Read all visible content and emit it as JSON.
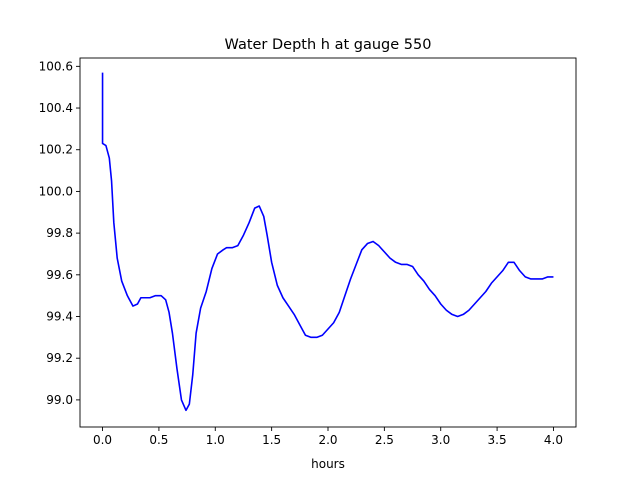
{
  "chart_data": {
    "type": "line",
    "title": "Water Depth h at gauge 550",
    "xlabel": "hours",
    "ylabel": "",
    "xlim": [
      -0.2,
      4.2
    ],
    "ylim": [
      98.87,
      100.64
    ],
    "xticks": [
      0.0,
      0.5,
      1.0,
      1.5,
      2.0,
      2.5,
      3.0,
      3.5,
      4.0
    ],
    "xtick_labels": [
      "0.0",
      "0.5",
      "1.0",
      "1.5",
      "2.0",
      "2.5",
      "3.0",
      "3.5",
      "4.0"
    ],
    "yticks": [
      99.0,
      99.2,
      99.4,
      99.6,
      99.8,
      100.0,
      100.2,
      100.4,
      100.6
    ],
    "ytick_labels": [
      "99.0",
      "99.2",
      "99.4",
      "99.6",
      "99.8",
      "100.0",
      "100.2",
      "100.4",
      "100.6"
    ],
    "grid": false,
    "legend": "none",
    "line_color": "#0000ff",
    "series": [
      {
        "x": [
          0.0,
          0.0,
          0.03,
          0.06,
          0.08,
          0.1,
          0.13,
          0.17,
          0.22,
          0.27,
          0.31,
          0.34,
          0.37,
          0.42,
          0.47,
          0.52,
          0.56,
          0.59,
          0.62,
          0.66,
          0.7,
          0.74,
          0.77,
          0.8,
          0.83,
          0.87,
          0.92,
          0.97,
          1.02,
          1.07,
          1.1,
          1.15,
          1.2,
          1.25,
          1.3,
          1.35,
          1.39,
          1.43,
          1.46,
          1.5,
          1.55,
          1.6,
          1.65,
          1.7,
          1.75,
          1.8,
          1.85,
          1.9,
          1.95,
          2.0,
          2.05,
          2.1,
          2.15,
          2.2,
          2.25,
          2.3,
          2.35,
          2.4,
          2.45,
          2.5,
          2.55,
          2.6,
          2.65,
          2.7,
          2.75,
          2.8,
          2.85,
          2.9,
          2.95,
          3.0,
          3.05,
          3.1,
          3.15,
          3.2,
          3.25,
          3.3,
          3.35,
          3.4,
          3.45,
          3.5,
          3.55,
          3.6,
          3.65,
          3.7,
          3.75,
          3.8,
          3.85,
          3.9,
          3.95,
          4.0
        ],
        "y": [
          100.57,
          100.23,
          100.22,
          100.16,
          100.05,
          99.85,
          99.68,
          99.57,
          99.5,
          99.45,
          99.46,
          99.49,
          99.49,
          99.49,
          99.5,
          99.5,
          99.48,
          99.42,
          99.32,
          99.15,
          99.0,
          98.95,
          98.98,
          99.12,
          99.32,
          99.44,
          99.52,
          99.63,
          99.7,
          99.72,
          99.73,
          99.73,
          99.74,
          99.79,
          99.85,
          99.92,
          99.93,
          99.88,
          99.79,
          99.66,
          99.55,
          99.49,
          99.45,
          99.41,
          99.36,
          99.31,
          99.3,
          99.3,
          99.31,
          99.34,
          99.37,
          99.42,
          99.5,
          99.58,
          99.65,
          99.72,
          99.75,
          99.76,
          99.74,
          99.71,
          99.68,
          99.66,
          99.65,
          99.65,
          99.64,
          99.6,
          99.57,
          99.53,
          99.5,
          99.46,
          99.43,
          99.41,
          99.4,
          99.41,
          99.43,
          99.46,
          99.49,
          99.52,
          99.56,
          99.59,
          99.62,
          99.66,
          99.66,
          99.62,
          99.59,
          99.58,
          99.58,
          99.58,
          99.59,
          99.59
        ]
      }
    ]
  }
}
